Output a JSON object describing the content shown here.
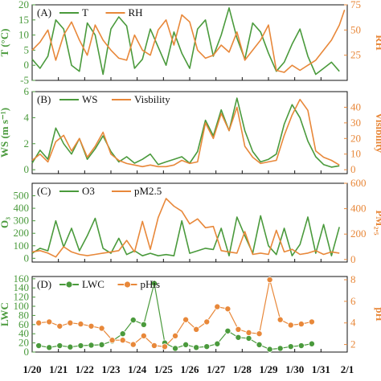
{
  "colors": {
    "green": "#4a9a3c",
    "orange": "#e8883a",
    "axis": "#111111"
  },
  "x_ticks": [
    "1/20",
    "1/21",
    "1/22",
    "1/23",
    "1/24",
    "1/25",
    "1/26",
    "1/27",
    "1/28",
    "1/29",
    "1/30",
    "1/31",
    "2/1"
  ],
  "chart_data": [
    {
      "type": "line",
      "panel_label": "(A)",
      "x_domain": [
        0,
        12
      ],
      "left_axis": {
        "label": "T (°C)",
        "ylim": [
          -5,
          20
        ],
        "ticks": [
          -5,
          0,
          5,
          10,
          15,
          20
        ]
      },
      "right_axis": {
        "label": "RH",
        "ylim": [
          0,
          75
        ],
        "ticks": [
          25,
          50,
          75
        ]
      },
      "series": [
        {
          "name": "T",
          "axis": "left",
          "x": [
            0,
            0.3,
            0.6,
            0.9,
            1.2,
            1.5,
            1.8,
            2.1,
            2.4,
            2.7,
            3.0,
            3.3,
            3.6,
            3.9,
            4.2,
            4.5,
            4.8,
            5.1,
            5.4,
            5.7,
            6.0,
            6.3,
            6.6,
            6.9,
            7.2,
            7.5,
            7.8,
            8.1,
            8.4,
            8.7,
            9.0,
            9.3,
            9.6,
            9.9,
            10.2,
            10.5,
            10.8,
            11.1,
            11.4,
            11.7
          ],
          "y": [
            2,
            -1,
            3,
            15,
            12,
            0,
            -2,
            14,
            10,
            -3,
            12,
            16,
            13,
            -1,
            2,
            12,
            6,
            0,
            11,
            4,
            -1,
            12,
            15,
            3,
            10,
            19,
            9,
            2,
            14,
            11,
            4,
            -2,
            1,
            7,
            12,
            3,
            -3,
            -1,
            1,
            -2
          ]
        },
        {
          "name": "RH",
          "axis": "right",
          "x": [
            0,
            0.3,
            0.6,
            0.9,
            1.2,
            1.5,
            1.8,
            2.1,
            2.4,
            2.7,
            3.0,
            3.3,
            3.6,
            3.9,
            4.2,
            4.5,
            4.8,
            5.1,
            5.4,
            5.7,
            6.0,
            6.3,
            6.6,
            6.9,
            7.2,
            7.5,
            7.8,
            8.1,
            8.4,
            8.7,
            9.0,
            9.3,
            9.6,
            9.9,
            10.2,
            10.5,
            10.8,
            11.1,
            11.4,
            11.7,
            11.9
          ],
          "y": [
            30,
            38,
            50,
            20,
            45,
            58,
            40,
            25,
            55,
            40,
            30,
            22,
            20,
            45,
            30,
            25,
            50,
            60,
            35,
            65,
            58,
            30,
            22,
            25,
            35,
            28,
            48,
            20,
            30,
            40,
            55,
            10,
            8,
            15,
            10,
            15,
            20,
            30,
            40,
            55,
            70
          ]
        }
      ]
    },
    {
      "type": "line",
      "panel_label": "(B)",
      "x_domain": [
        0,
        12
      ],
      "left_axis": {
        "label": "WS (m s⁻¹)",
        "ylim": [
          -0.3,
          6
        ],
        "ticks": [
          0,
          2,
          4,
          6
        ]
      },
      "right_axis": {
        "label": "Visibility",
        "ylim": [
          -2.5,
          50
        ],
        "ticks": [
          0,
          10,
          20,
          30,
          40
        ]
      },
      "series": [
        {
          "name": "WS",
          "axis": "left",
          "x": [
            0,
            0.3,
            0.6,
            0.9,
            1.2,
            1.5,
            1.8,
            2.1,
            2.4,
            2.7,
            3.0,
            3.3,
            3.6,
            3.9,
            4.2,
            4.5,
            4.8,
            5.1,
            5.4,
            5.7,
            6.0,
            6.3,
            6.6,
            6.9,
            7.2,
            7.5,
            7.8,
            8.1,
            8.4,
            8.7,
            9.0,
            9.3,
            9.6,
            9.9,
            10.2,
            10.5,
            10.8,
            11.1,
            11.4,
            11.7
          ],
          "y": [
            0.5,
            1.5,
            0.8,
            3.2,
            2.0,
            1.2,
            2.4,
            0.8,
            1.6,
            2.6,
            1.4,
            0.6,
            1.0,
            0.5,
            0.8,
            1.2,
            0.4,
            0.6,
            0.8,
            1.0,
            0.5,
            1.4,
            3.8,
            2.6,
            4.6,
            3.0,
            5.5,
            3.0,
            1.4,
            0.6,
            0.8,
            1.2,
            3.5,
            5.0,
            4.0,
            2.2,
            1.0,
            0.4,
            0.2,
            0.3
          ]
        },
        {
          "name": "Visbility",
          "axis": "right",
          "x": [
            0,
            0.3,
            0.6,
            0.9,
            1.2,
            1.5,
            1.8,
            2.1,
            2.4,
            2.7,
            3.0,
            3.3,
            3.6,
            3.9,
            4.2,
            4.5,
            4.8,
            5.1,
            5.4,
            5.7,
            6.0,
            6.3,
            6.6,
            6.9,
            7.2,
            7.5,
            7.8,
            8.1,
            8.4,
            8.7,
            9.0,
            9.3,
            9.6,
            9.9,
            10.2,
            10.5,
            10.8,
            11.1,
            11.4,
            11.7
          ],
          "y": [
            6,
            10,
            5,
            18,
            22,
            12,
            20,
            8,
            15,
            24,
            10,
            6,
            4,
            3,
            2,
            3,
            2,
            2,
            3,
            6,
            4,
            5,
            30,
            20,
            36,
            25,
            40,
            15,
            8,
            4,
            5,
            6,
            22,
            35,
            45,
            38,
            12,
            8,
            6,
            3
          ]
        }
      ]
    },
    {
      "type": "line",
      "panel_label": "(C)",
      "x_domain": [
        0,
        12
      ],
      "left_axis": {
        "label": "O₃",
        "ylim": [
          -30,
          600
        ],
        "ticks": [
          0,
          100,
          200,
          300,
          400,
          500
        ]
      },
      "right_axis": {
        "label": "PM₂.₅",
        "ylim": [
          -20,
          600
        ],
        "ticks": [
          0,
          200,
          400,
          600
        ]
      },
      "series": [
        {
          "name": "O3",
          "axis": "left",
          "x": [
            0,
            0.3,
            0.6,
            0.9,
            1.2,
            1.5,
            1.8,
            2.1,
            2.4,
            2.7,
            3.0,
            3.3,
            3.6,
            3.9,
            4.2,
            4.5,
            4.8,
            5.1,
            5.4,
            5.7,
            6.0,
            6.3,
            6.6,
            6.9,
            7.2,
            7.5,
            7.8,
            8.1,
            8.4,
            8.7,
            9.0,
            9.3,
            9.6,
            9.9,
            10.2,
            10.5,
            10.8,
            11.1,
            11.4,
            11.7
          ],
          "y": [
            40,
            80,
            60,
            300,
            90,
            240,
            60,
            180,
            320,
            80,
            40,
            160,
            30,
            60,
            20,
            40,
            20,
            30,
            20,
            300,
            40,
            60,
            80,
            70,
            240,
            20,
            330,
            180,
            40,
            340,
            100,
            30,
            240,
            20,
            110,
            330,
            40,
            270,
            20,
            250
          ]
        },
        {
          "name": "pM2.5",
          "axis": "right",
          "x": [
            0,
            0.3,
            0.6,
            0.9,
            1.2,
            1.5,
            1.8,
            2.1,
            2.4,
            2.7,
            3.0,
            3.3,
            3.6,
            3.9,
            4.2,
            4.5,
            4.8,
            5.1,
            5.4,
            5.7,
            6.0,
            6.3,
            6.6,
            6.9,
            7.2,
            7.5,
            7.8,
            8.1,
            8.4,
            8.7,
            9.0,
            9.3,
            9.6,
            9.9,
            10.2,
            10.5,
            10.8,
            11.1,
            11.4,
            11.7
          ],
          "y": [
            60,
            70,
            50,
            20,
            100,
            60,
            40,
            30,
            40,
            50,
            60,
            70,
            150,
            60,
            300,
            80,
            330,
            480,
            420,
            380,
            280,
            320,
            250,
            260,
            70,
            60,
            50,
            220,
            40,
            50,
            40,
            230,
            60,
            80,
            40,
            50,
            70,
            40,
            60,
            50
          ]
        }
      ]
    },
    {
      "type": "scatter",
      "panel_label": "(D)",
      "x_domain": [
        0,
        12
      ],
      "left_axis": {
        "label": "LWC",
        "ylim": [
          0,
          165
        ],
        "ticks": [
          0,
          20,
          40,
          60,
          80,
          100,
          120,
          140,
          160
        ]
      },
      "right_axis": {
        "label": "pH",
        "ylim": [
          1.3,
          8.3
        ],
        "ticks": [
          2,
          4,
          6,
          8
        ]
      },
      "series": [
        {
          "name": "LWC",
          "axis": "left",
          "x": [
            0.25,
            0.65,
            1.05,
            1.45,
            1.85,
            2.25,
            2.65,
            3.05,
            3.45,
            3.85,
            4.25,
            4.65,
            5.05,
            5.45,
            5.85,
            6.25,
            6.65,
            7.05,
            7.45,
            7.85,
            8.25,
            8.65,
            9.05,
            9.45,
            9.85,
            10.25,
            10.65
          ],
          "y": [
            14,
            10,
            14,
            11,
            14,
            15,
            16,
            24,
            40,
            70,
            60,
            150,
            20,
            8,
            16,
            10,
            12,
            18,
            46,
            32,
            30,
            16,
            6,
            8,
            12,
            14,
            18
          ]
        },
        {
          "name": "pHis",
          "axis": "right",
          "x": [
            0.25,
            0.65,
            1.05,
            1.45,
            1.85,
            2.25,
            2.65,
            3.05,
            3.45,
            3.85,
            4.25,
            4.65,
            5.05,
            5.45,
            5.85,
            6.25,
            6.65,
            7.05,
            7.45,
            7.85,
            8.25,
            8.65,
            9.05,
            9.45,
            9.85,
            10.25,
            10.65
          ],
          "y": [
            4.0,
            4.1,
            3.7,
            4.0,
            3.9,
            3.7,
            3.5,
            2.4,
            2.4,
            2.0,
            2.8,
            1.9,
            1.8,
            2.8,
            4.3,
            3.4,
            4.1,
            5.5,
            5.3,
            3.4,
            3.1,
            3.0,
            8.0,
            4.3,
            3.8,
            3.9,
            4.1
          ]
        }
      ]
    }
  ]
}
